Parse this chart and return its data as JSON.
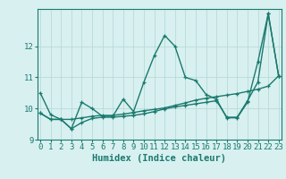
{
  "xlabel": "Humidex (Indice chaleur)",
  "bg_color": "#d8f0f0",
  "line_color": "#1a7a6e",
  "grid_color": "#b8dada",
  "x_values": [
    0,
    1,
    2,
    3,
    4,
    5,
    6,
    7,
    8,
    9,
    10,
    11,
    12,
    13,
    14,
    15,
    16,
    17,
    18,
    19,
    20,
    21,
    22,
    23
  ],
  "series": [
    [
      10.5,
      9.8,
      9.65,
      9.35,
      10.2,
      10.0,
      9.75,
      9.75,
      10.3,
      9.9,
      10.85,
      11.7,
      12.35,
      12.0,
      11.0,
      10.9,
      10.45,
      10.3,
      9.7,
      9.7,
      10.2,
      11.5,
      13.05,
      11.05
    ],
    [
      9.85,
      9.65,
      9.65,
      9.65,
      9.7,
      9.75,
      9.78,
      9.78,
      9.82,
      9.87,
      9.93,
      9.97,
      10.02,
      10.1,
      10.18,
      10.27,
      10.33,
      10.38,
      10.43,
      10.48,
      10.55,
      10.62,
      10.72,
      11.05
    ],
    [
      9.85,
      9.65,
      9.65,
      9.35,
      9.55,
      9.68,
      9.72,
      9.72,
      9.75,
      9.78,
      9.83,
      9.9,
      9.99,
      10.05,
      10.1,
      10.15,
      10.2,
      10.25,
      9.72,
      9.72,
      10.25,
      10.85,
      13.05,
      11.05
    ]
  ],
  "ylim": [
    9.0,
    13.2
  ],
  "xlim": [
    -0.3,
    23.3
  ],
  "yticks": [
    9,
    10,
    11,
    12
  ],
  "xticks": [
    0,
    1,
    2,
    3,
    4,
    5,
    6,
    7,
    8,
    9,
    10,
    11,
    12,
    13,
    14,
    15,
    16,
    17,
    18,
    19,
    20,
    21,
    22,
    23
  ],
  "marker": "+",
  "linewidth": 1.0,
  "markersize": 3.5,
  "tick_fontsize": 6.5,
  "xlabel_fontsize": 7.5
}
